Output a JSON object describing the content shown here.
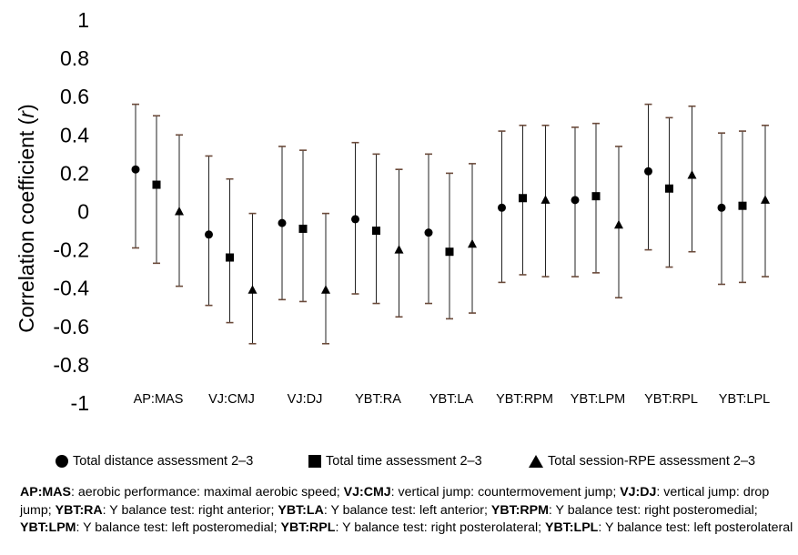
{
  "chart_data": {
    "type": "scatter",
    "ylabel": "Correlation coefficient (r)",
    "ylabel_main": "Correlation coefficient (",
    "ylabel_var": "r",
    "ylabel_end": ")",
    "ylim": [
      -1,
      1
    ],
    "yticks": [
      "1",
      "0.8",
      "0.6",
      "0.4",
      "0.2",
      "0",
      "-0.2",
      "-0.4",
      "-0.6",
      "-0.8",
      "-1"
    ],
    "ytick_values": [
      1,
      0.8,
      0.6,
      0.4,
      0.2,
      0,
      -0.2,
      -0.4,
      -0.6,
      -0.8,
      -1
    ],
    "categories": [
      "AP:MAS",
      "VJ:CMJ",
      "VJ:DJ",
      "YBT:RA",
      "YBT:LA",
      "YBT:RPM",
      "YBT:LPM",
      "YBT:RPL",
      "YBT:LPL"
    ],
    "grid": false,
    "legend_position": "bottom",
    "series": [
      {
        "name": "Total distance assessment 2–3",
        "marker": "circle",
        "values": [
          0.22,
          -0.12,
          -0.06,
          -0.04,
          -0.11,
          0.02,
          0.06,
          0.21,
          0.02
        ],
        "lower": [
          -0.19,
          -0.49,
          -0.46,
          -0.43,
          -0.48,
          -0.37,
          -0.34,
          -0.2,
          -0.38
        ],
        "upper": [
          0.56,
          0.29,
          0.34,
          0.36,
          0.3,
          0.42,
          0.44,
          0.56,
          0.41
        ]
      },
      {
        "name": "Total time assessment 2–3",
        "marker": "square",
        "values": [
          0.14,
          -0.24,
          -0.09,
          -0.1,
          -0.21,
          0.07,
          0.08,
          0.12,
          0.03
        ],
        "lower": [
          -0.27,
          -0.58,
          -0.47,
          -0.48,
          -0.56,
          -0.33,
          -0.32,
          -0.29,
          -0.37
        ],
        "upper": [
          0.5,
          0.17,
          0.32,
          0.3,
          0.2,
          0.45,
          0.46,
          0.49,
          0.42
        ]
      },
      {
        "name": "Total session-RPE assessment 2–3",
        "marker": "triangle",
        "values": [
          0.0,
          -0.41,
          -0.41,
          -0.2,
          -0.17,
          0.06,
          -0.07,
          0.19,
          0.06
        ],
        "lower": [
          -0.39,
          -0.69,
          -0.69,
          -0.55,
          -0.53,
          -0.34,
          -0.45,
          -0.21,
          -0.34
        ],
        "upper": [
          0.4,
          -0.01,
          -0.01,
          0.22,
          0.25,
          0.45,
          0.34,
          0.55,
          0.45
        ]
      }
    ]
  },
  "caption": [
    {
      "b": "AP:MAS",
      "t": ": aerobic performance: maximal aerobic speed; "
    },
    {
      "b": "VJ:CMJ",
      "t": ": vertical jump: countermovement jump; "
    },
    {
      "b": "VJ:DJ",
      "t": ": vertical jump: drop jump; "
    },
    {
      "b": "YBT:RA",
      "t": ": Y balance test: right anterior; "
    },
    {
      "b": "YBT:LA",
      "t": ": Y balance test: left anterior; "
    },
    {
      "b": "YBT:RPM",
      "t": ": Y balance test: right posteromedial; "
    },
    {
      "b": "YBT:LPM",
      "t": ": Y balance test: left posteromedial; "
    },
    {
      "b": "YBT:RPL",
      "t": ": Y balance test: right posterolateral; "
    },
    {
      "b": "YBT:LPL",
      "t": ": Y balance test: left posterolateral"
    }
  ]
}
